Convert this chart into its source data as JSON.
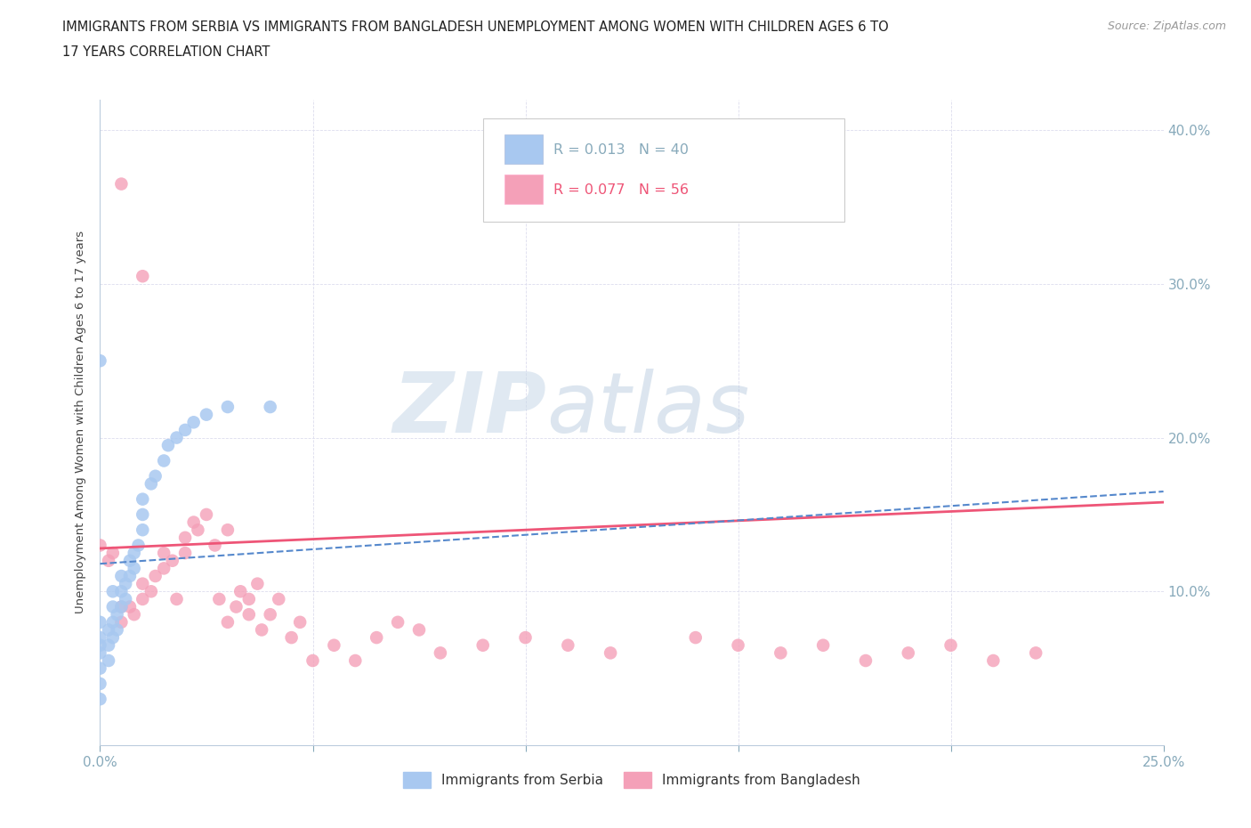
{
  "title_line1": "IMMIGRANTS FROM SERBIA VS IMMIGRANTS FROM BANGLADESH UNEMPLOYMENT AMONG WOMEN WITH CHILDREN AGES 6 TO",
  "title_line2": "17 YEARS CORRELATION CHART",
  "source": "Source: ZipAtlas.com",
  "ylabel": "Unemployment Among Women with Children Ages 6 to 17 years",
  "xlim": [
    0.0,
    0.25
  ],
  "ylim": [
    0.0,
    0.42
  ],
  "x_ticks": [
    0.0,
    0.05,
    0.1,
    0.15,
    0.2,
    0.25
  ],
  "y_ticks": [
    0.0,
    0.1,
    0.2,
    0.3,
    0.4
  ],
  "serbia_color": "#A8C8F0",
  "bangladesh_color": "#F4A0B8",
  "serbia_R": 0.013,
  "serbia_N": 40,
  "bangladesh_R": 0.077,
  "bangladesh_N": 56,
  "serbia_trend_color": "#5588CC",
  "bangladesh_trend_color": "#EE5577",
  "watermark_zip": "ZIP",
  "watermark_atlas": "atlas",
  "background_color": "#FFFFFF",
  "grid_color": "#DDDDEE",
  "tick_color": "#88AABB",
  "serbia_x": [
    0.0,
    0.0,
    0.0,
    0.0,
    0.0,
    0.0,
    0.0,
    0.002,
    0.002,
    0.002,
    0.003,
    0.003,
    0.003,
    0.003,
    0.004,
    0.004,
    0.005,
    0.005,
    0.005,
    0.006,
    0.006,
    0.007,
    0.007,
    0.008,
    0.008,
    0.009,
    0.01,
    0.01,
    0.01,
    0.012,
    0.013,
    0.015,
    0.016,
    0.018,
    0.02,
    0.022,
    0.025,
    0.03,
    0.04,
    0.0
  ],
  "serbia_y": [
    0.03,
    0.04,
    0.05,
    0.06,
    0.065,
    0.07,
    0.08,
    0.055,
    0.065,
    0.075,
    0.07,
    0.08,
    0.09,
    0.1,
    0.075,
    0.085,
    0.09,
    0.1,
    0.11,
    0.095,
    0.105,
    0.11,
    0.12,
    0.115,
    0.125,
    0.13,
    0.14,
    0.15,
    0.16,
    0.17,
    0.175,
    0.185,
    0.195,
    0.2,
    0.205,
    0.21,
    0.215,
    0.22,
    0.22,
    0.25
  ],
  "bangladesh_x": [
    0.0,
    0.002,
    0.003,
    0.005,
    0.005,
    0.007,
    0.008,
    0.01,
    0.01,
    0.012,
    0.013,
    0.015,
    0.015,
    0.017,
    0.018,
    0.02,
    0.02,
    0.022,
    0.023,
    0.025,
    0.027,
    0.028,
    0.03,
    0.03,
    0.032,
    0.033,
    0.035,
    0.035,
    0.037,
    0.038,
    0.04,
    0.042,
    0.045,
    0.047,
    0.05,
    0.055,
    0.06,
    0.065,
    0.07,
    0.075,
    0.08,
    0.09,
    0.1,
    0.11,
    0.12,
    0.14,
    0.15,
    0.16,
    0.17,
    0.18,
    0.19,
    0.2,
    0.21,
    0.22,
    0.005,
    0.01
  ],
  "bangladesh_y": [
    0.13,
    0.12,
    0.125,
    0.08,
    0.09,
    0.09,
    0.085,
    0.095,
    0.105,
    0.1,
    0.11,
    0.115,
    0.125,
    0.12,
    0.095,
    0.125,
    0.135,
    0.145,
    0.14,
    0.15,
    0.13,
    0.095,
    0.14,
    0.08,
    0.09,
    0.1,
    0.085,
    0.095,
    0.105,
    0.075,
    0.085,
    0.095,
    0.07,
    0.08,
    0.055,
    0.065,
    0.055,
    0.07,
    0.08,
    0.075,
    0.06,
    0.065,
    0.07,
    0.065,
    0.06,
    0.07,
    0.065,
    0.06,
    0.065,
    0.055,
    0.06,
    0.065,
    0.055,
    0.06,
    0.365,
    0.305
  ],
  "serbia_trend_x0": 0.0,
  "serbia_trend_y0": 0.118,
  "serbia_trend_x1": 0.25,
  "serbia_trend_y1": 0.165,
  "bangladesh_trend_x0": 0.0,
  "bangladesh_trend_y0": 0.128,
  "bangladesh_trend_x1": 0.25,
  "bangladesh_trend_y1": 0.158
}
